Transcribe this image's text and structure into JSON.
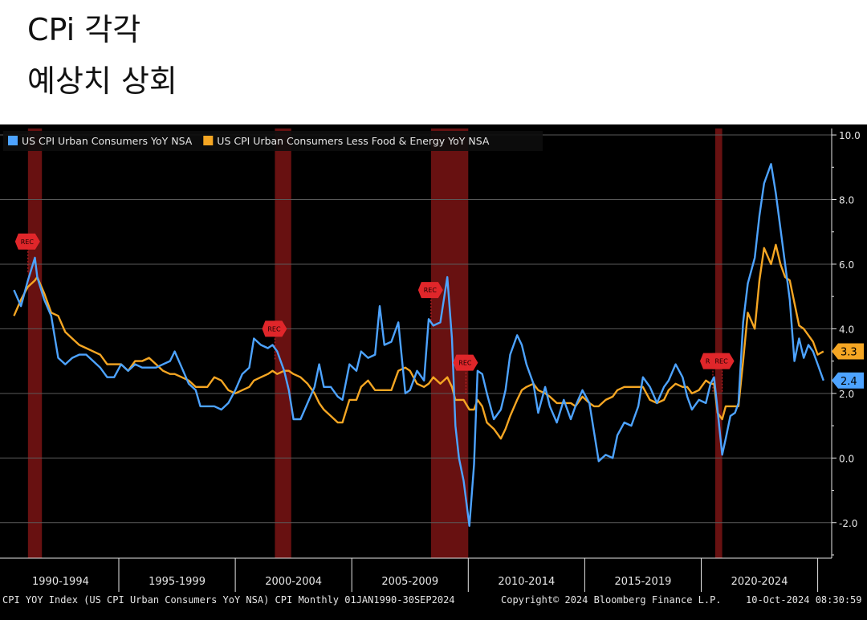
{
  "heading": {
    "line1": "CPi 각각",
    "line2": "예상치 상회"
  },
  "footer": {
    "left": "CPI YOY Index (US CPI Urban Consumers YoY NSA) CPI  Monthly 01JAN1990-30SEP2024",
    "middle": "Copyright© 2024 Bloomberg Finance L.P.",
    "right": "10-Oct-2024 08:30:59"
  },
  "colors": {
    "headline": "#4da3ff",
    "core": "#f5a623",
    "recession": "#7a1414",
    "rec_marker": "#e0262a",
    "grid": "#5a5a5a",
    "axis_text": "#e6e6e6"
  },
  "chart_data": {
    "type": "line",
    "ylim": [
      -3.1,
      10.2
    ],
    "xlim": [
      1989.4,
      2025.1
    ],
    "yticks": [
      -2.0,
      0.0,
      2.0,
      4.0,
      6.0,
      8.0,
      10.0
    ],
    "ytick_labels": [
      "-2.0",
      "0.0",
      "2.0",
      "4.0",
      "6.0",
      "8.0",
      "10.0"
    ],
    "grid": true,
    "legend_position": "top-left",
    "x_period_labels": [
      {
        "label": "1990-1994",
        "center": 1992.0
      },
      {
        "label": "1995-1999",
        "center": 1997.0
      },
      {
        "label": "2000-2004",
        "center": 2002.0
      },
      {
        "label": "2005-2009",
        "center": 2007.0
      },
      {
        "label": "2010-2014",
        "center": 2012.0
      },
      {
        "label": "2015-2019",
        "center": 2017.0
      },
      {
        "label": "2020-2024",
        "center": 2022.0
      }
    ],
    "x_period_boundaries": [
      1994.5,
      1999.5,
      2004.5,
      2009.5,
      2014.5,
      2019.5,
      2024.5
    ],
    "recessions": [
      {
        "start": 1990.6,
        "end": 1991.2
      },
      {
        "start": 2001.2,
        "end": 2001.9
      },
      {
        "start": 2007.9,
        "end": 2009.5
      },
      {
        "start": 2020.1,
        "end": 2020.4
      }
    ],
    "rec_markers": [
      {
        "label": "REC",
        "x": 1990.6,
        "y": 6.7
      },
      {
        "label": "REC",
        "x": 2001.2,
        "y": 4.0
      },
      {
        "label": "REC",
        "x": 2007.9,
        "y": 5.2
      },
      {
        "label": "REC",
        "x": 2009.4,
        "y": 2.95
      },
      {
        "label": "REC",
        "x": 2020.0,
        "y": 3.0
      },
      {
        "label": "REC",
        "x": 2020.4,
        "y": 3.0
      }
    ],
    "last_values": [
      {
        "series": "US CPI Urban Consumers Less Food & Energy YoY NSA",
        "value": 3.3,
        "label": "3.3"
      },
      {
        "series": "US CPI Urban Consumers YoY NSA",
        "value": 2.4,
        "label": "2.4"
      }
    ],
    "series": [
      {
        "name": "US CPI Urban Consumers YoY NSA",
        "color": "#4da3ff",
        "points": [
          [
            1990.0,
            5.2
          ],
          [
            1990.3,
            4.7
          ],
          [
            1990.6,
            5.5
          ],
          [
            1990.9,
            6.2
          ],
          [
            1991.0,
            5.6
          ],
          [
            1991.3,
            4.9
          ],
          [
            1991.6,
            4.4
          ],
          [
            1991.9,
            3.1
          ],
          [
            1992.2,
            2.9
          ],
          [
            1992.5,
            3.1
          ],
          [
            1992.8,
            3.2
          ],
          [
            1993.1,
            3.2
          ],
          [
            1993.4,
            3.0
          ],
          [
            1993.7,
            2.8
          ],
          [
            1994.0,
            2.5
          ],
          [
            1994.3,
            2.5
          ],
          [
            1994.6,
            2.9
          ],
          [
            1994.9,
            2.7
          ],
          [
            1995.2,
            2.9
          ],
          [
            1995.5,
            2.8
          ],
          [
            1995.8,
            2.8
          ],
          [
            1996.1,
            2.8
          ],
          [
            1996.4,
            2.9
          ],
          [
            1996.7,
            3.0
          ],
          [
            1996.9,
            3.3
          ],
          [
            1997.2,
            2.8
          ],
          [
            1997.5,
            2.3
          ],
          [
            1997.8,
            2.1
          ],
          [
            1998.0,
            1.6
          ],
          [
            1998.3,
            1.6
          ],
          [
            1998.6,
            1.6
          ],
          [
            1998.9,
            1.5
          ],
          [
            1999.2,
            1.7
          ],
          [
            1999.5,
            2.1
          ],
          [
            1999.8,
            2.6
          ],
          [
            2000.1,
            2.8
          ],
          [
            2000.3,
            3.7
          ],
          [
            2000.6,
            3.5
          ],
          [
            2000.9,
            3.4
          ],
          [
            2001.1,
            3.5
          ],
          [
            2001.3,
            3.3
          ],
          [
            2001.6,
            2.7
          ],
          [
            2001.8,
            2.1
          ],
          [
            2002.0,
            1.2
          ],
          [
            2002.3,
            1.2
          ],
          [
            2002.6,
            1.7
          ],
          [
            2002.9,
            2.2
          ],
          [
            2003.1,
            2.9
          ],
          [
            2003.3,
            2.2
          ],
          [
            2003.6,
            2.2
          ],
          [
            2003.9,
            1.9
          ],
          [
            2004.1,
            1.8
          ],
          [
            2004.4,
            2.9
          ],
          [
            2004.7,
            2.7
          ],
          [
            2004.9,
            3.3
          ],
          [
            2005.2,
            3.1
          ],
          [
            2005.5,
            3.2
          ],
          [
            2005.7,
            4.7
          ],
          [
            2005.9,
            3.5
          ],
          [
            2006.2,
            3.6
          ],
          [
            2006.5,
            4.2
          ],
          [
            2006.8,
            2.0
          ],
          [
            2007.0,
            2.1
          ],
          [
            2007.3,
            2.7
          ],
          [
            2007.6,
            2.4
          ],
          [
            2007.8,
            4.3
          ],
          [
            2008.0,
            4.1
          ],
          [
            2008.3,
            4.2
          ],
          [
            2008.6,
            5.6
          ],
          [
            2008.8,
            3.7
          ],
          [
            2008.95,
            1.0
          ],
          [
            2009.1,
            0.0
          ],
          [
            2009.3,
            -0.7
          ],
          [
            2009.55,
            -2.1
          ],
          [
            2009.75,
            -0.2
          ],
          [
            2009.9,
            2.7
          ],
          [
            2010.1,
            2.6
          ],
          [
            2010.3,
            2.0
          ],
          [
            2010.6,
            1.2
          ],
          [
            2010.9,
            1.5
          ],
          [
            2011.1,
            2.1
          ],
          [
            2011.3,
            3.2
          ],
          [
            2011.6,
            3.8
          ],
          [
            2011.8,
            3.5
          ],
          [
            2012.0,
            2.9
          ],
          [
            2012.3,
            2.3
          ],
          [
            2012.5,
            1.4
          ],
          [
            2012.8,
            2.2
          ],
          [
            2013.0,
            1.6
          ],
          [
            2013.3,
            1.1
          ],
          [
            2013.6,
            1.8
          ],
          [
            2013.9,
            1.2
          ],
          [
            2014.1,
            1.6
          ],
          [
            2014.4,
            2.1
          ],
          [
            2014.7,
            1.7
          ],
          [
            2014.9,
            0.8
          ],
          [
            2015.1,
            -0.1
          ],
          [
            2015.4,
            0.1
          ],
          [
            2015.7,
            0.0
          ],
          [
            2015.9,
            0.7
          ],
          [
            2016.2,
            1.1
          ],
          [
            2016.5,
            1.0
          ],
          [
            2016.8,
            1.6
          ],
          [
            2017.0,
            2.5
          ],
          [
            2017.3,
            2.2
          ],
          [
            2017.6,
            1.7
          ],
          [
            2017.9,
            2.2
          ],
          [
            2018.1,
            2.4
          ],
          [
            2018.4,
            2.9
          ],
          [
            2018.7,
            2.5
          ],
          [
            2018.9,
            1.9
          ],
          [
            2019.1,
            1.5
          ],
          [
            2019.4,
            1.8
          ],
          [
            2019.7,
            1.7
          ],
          [
            2019.9,
            2.3
          ],
          [
            2020.05,
            2.5
          ],
          [
            2020.2,
            1.5
          ],
          [
            2020.4,
            0.1
          ],
          [
            2020.55,
            0.6
          ],
          [
            2020.75,
            1.3
          ],
          [
            2020.95,
            1.4
          ],
          [
            2021.1,
            1.7
          ],
          [
            2021.3,
            4.2
          ],
          [
            2021.5,
            5.4
          ],
          [
            2021.8,
            6.2
          ],
          [
            2022.0,
            7.5
          ],
          [
            2022.2,
            8.5
          ],
          [
            2022.5,
            9.1
          ],
          [
            2022.7,
            8.2
          ],
          [
            2022.9,
            7.1
          ],
          [
            2023.1,
            6.0
          ],
          [
            2023.3,
            4.9
          ],
          [
            2023.5,
            3.0
          ],
          [
            2023.7,
            3.7
          ],
          [
            2023.9,
            3.1
          ],
          [
            2024.1,
            3.5
          ],
          [
            2024.3,
            3.3
          ],
          [
            2024.5,
            2.9
          ],
          [
            2024.75,
            2.4
          ]
        ]
      },
      {
        "name": "US CPI Urban Consumers Less Food & Energy YoY NSA",
        "color": "#f5a623",
        "points": [
          [
            1990.0,
            4.4
          ],
          [
            1990.3,
            4.9
          ],
          [
            1990.6,
            5.3
          ],
          [
            1990.9,
            5.5
          ],
          [
            1991.0,
            5.6
          ],
          [
            1991.3,
            5.1
          ],
          [
            1991.6,
            4.5
          ],
          [
            1991.9,
            4.4
          ],
          [
            1992.2,
            3.9
          ],
          [
            1992.5,
            3.7
          ],
          [
            1992.8,
            3.5
          ],
          [
            1993.1,
            3.4
          ],
          [
            1993.4,
            3.3
          ],
          [
            1993.7,
            3.2
          ],
          [
            1994.0,
            2.9
          ],
          [
            1994.3,
            2.9
          ],
          [
            1994.6,
            2.9
          ],
          [
            1994.9,
            2.7
          ],
          [
            1995.2,
            3.0
          ],
          [
            1995.5,
            3.0
          ],
          [
            1995.8,
            3.1
          ],
          [
            1996.1,
            2.9
          ],
          [
            1996.4,
            2.7
          ],
          [
            1996.7,
            2.6
          ],
          [
            1996.9,
            2.6
          ],
          [
            1997.2,
            2.5
          ],
          [
            1997.5,
            2.4
          ],
          [
            1997.8,
            2.2
          ],
          [
            1998.0,
            2.2
          ],
          [
            1998.3,
            2.2
          ],
          [
            1998.6,
            2.5
          ],
          [
            1998.9,
            2.4
          ],
          [
            1999.2,
            2.1
          ],
          [
            1999.5,
            2.0
          ],
          [
            1999.8,
            2.1
          ],
          [
            2000.1,
            2.2
          ],
          [
            2000.3,
            2.4
          ],
          [
            2000.6,
            2.5
          ],
          [
            2000.9,
            2.6
          ],
          [
            2001.1,
            2.7
          ],
          [
            2001.3,
            2.6
          ],
          [
            2001.6,
            2.7
          ],
          [
            2001.8,
            2.7
          ],
          [
            2002.0,
            2.6
          ],
          [
            2002.3,
            2.5
          ],
          [
            2002.6,
            2.3
          ],
          [
            2002.9,
            2.0
          ],
          [
            2003.1,
            1.7
          ],
          [
            2003.3,
            1.5
          ],
          [
            2003.6,
            1.3
          ],
          [
            2003.9,
            1.1
          ],
          [
            2004.1,
            1.1
          ],
          [
            2004.4,
            1.8
          ],
          [
            2004.7,
            1.8
          ],
          [
            2004.9,
            2.2
          ],
          [
            2005.2,
            2.4
          ],
          [
            2005.5,
            2.1
          ],
          [
            2005.7,
            2.1
          ],
          [
            2005.9,
            2.1
          ],
          [
            2006.2,
            2.1
          ],
          [
            2006.5,
            2.7
          ],
          [
            2006.8,
            2.8
          ],
          [
            2007.0,
            2.7
          ],
          [
            2007.3,
            2.3
          ],
          [
            2007.6,
            2.2
          ],
          [
            2007.8,
            2.3
          ],
          [
            2008.0,
            2.5
          ],
          [
            2008.3,
            2.3
          ],
          [
            2008.6,
            2.5
          ],
          [
            2008.8,
            2.2
          ],
          [
            2008.95,
            1.8
          ],
          [
            2009.1,
            1.8
          ],
          [
            2009.3,
            1.8
          ],
          [
            2009.55,
            1.5
          ],
          [
            2009.75,
            1.5
          ],
          [
            2009.9,
            1.8
          ],
          [
            2010.1,
            1.6
          ],
          [
            2010.3,
            1.1
          ],
          [
            2010.6,
            0.9
          ],
          [
            2010.9,
            0.6
          ],
          [
            2011.1,
            0.9
          ],
          [
            2011.3,
            1.3
          ],
          [
            2011.6,
            1.8
          ],
          [
            2011.8,
            2.1
          ],
          [
            2012.0,
            2.2
          ],
          [
            2012.3,
            2.3
          ],
          [
            2012.5,
            2.1
          ],
          [
            2012.8,
            2.0
          ],
          [
            2013.0,
            1.9
          ],
          [
            2013.3,
            1.7
          ],
          [
            2013.6,
            1.7
          ],
          [
            2013.9,
            1.7
          ],
          [
            2014.1,
            1.6
          ],
          [
            2014.4,
            1.9
          ],
          [
            2014.7,
            1.7
          ],
          [
            2014.9,
            1.6
          ],
          [
            2015.1,
            1.6
          ],
          [
            2015.4,
            1.8
          ],
          [
            2015.7,
            1.9
          ],
          [
            2015.9,
            2.1
          ],
          [
            2016.2,
            2.2
          ],
          [
            2016.5,
            2.2
          ],
          [
            2016.8,
            2.2
          ],
          [
            2017.0,
            2.2
          ],
          [
            2017.3,
            1.8
          ],
          [
            2017.6,
            1.7
          ],
          [
            2017.9,
            1.8
          ],
          [
            2018.1,
            2.1
          ],
          [
            2018.4,
            2.3
          ],
          [
            2018.7,
            2.2
          ],
          [
            2018.9,
            2.2
          ],
          [
            2019.1,
            2.0
          ],
          [
            2019.4,
            2.1
          ],
          [
            2019.7,
            2.4
          ],
          [
            2019.9,
            2.3
          ],
          [
            2020.05,
            2.3
          ],
          [
            2020.2,
            1.4
          ],
          [
            2020.4,
            1.2
          ],
          [
            2020.55,
            1.6
          ],
          [
            2020.75,
            1.6
          ],
          [
            2020.95,
            1.6
          ],
          [
            2021.1,
            1.6
          ],
          [
            2021.3,
            3.0
          ],
          [
            2021.5,
            4.5
          ],
          [
            2021.8,
            4.0
          ],
          [
            2022.0,
            5.5
          ],
          [
            2022.2,
            6.5
          ],
          [
            2022.5,
            6.0
          ],
          [
            2022.7,
            6.6
          ],
          [
            2022.9,
            6.0
          ],
          [
            2023.1,
            5.6
          ],
          [
            2023.3,
            5.5
          ],
          [
            2023.5,
            4.8
          ],
          [
            2023.7,
            4.1
          ],
          [
            2023.9,
            4.0
          ],
          [
            2024.1,
            3.8
          ],
          [
            2024.3,
            3.6
          ],
          [
            2024.5,
            3.2
          ],
          [
            2024.75,
            3.3
          ]
        ]
      }
    ]
  }
}
